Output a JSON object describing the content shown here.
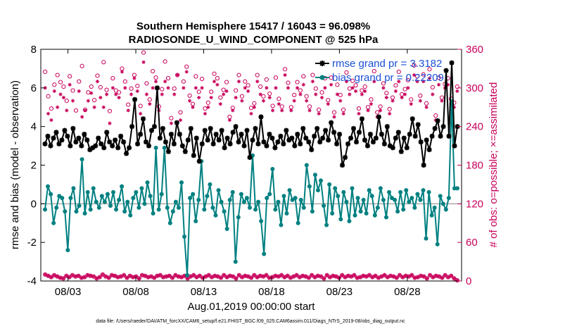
{
  "chart_data": {
    "type": "line",
    "title_line1": "Southern Hemisphere 15417 / 16043 = 96.098%",
    "title_line2": "RADIOSONDE_U_WIND_COMPONENT @ 525 hPa",
    "ylabel": "rmse and bias (model - observation)",
    "ylabel_right": "# of obs: o=possible; ×=assimilated",
    "xlabel": "Aug.01,2019 00:00:00 start",
    "footnote": "data file: /Users/raeder/DAI/ATM_forcXX/CAM6_setup/f.e21.FHIST_BGC.f09_025.CAM6assim.011/Diags_NTrS_2019-08/obs_diag_output.nc",
    "ylim": [
      -4,
      8
    ],
    "yticks": [
      "-4",
      "-2",
      "0",
      "2",
      "4",
      "6",
      "8"
    ],
    "ylim_right": [
      0,
      360
    ],
    "yticks_right": [
      "0",
      "60",
      "120",
      "180",
      "240",
      "300",
      "360"
    ],
    "xlim": [
      0,
      31
    ],
    "xticks": [
      {
        "pos": 2,
        "label": "08/03"
      },
      {
        "pos": 7,
        "label": "08/08"
      },
      {
        "pos": 12,
        "label": "08/13"
      },
      {
        "pos": 17,
        "label": "08/18"
      },
      {
        "pos": 22,
        "label": "08/23"
      },
      {
        "pos": 27,
        "label": "08/28"
      }
    ],
    "series": [
      {
        "name": "rmse grand pr = 3.3182",
        "color": "#000000",
        "values": [
          3.1,
          3.5,
          3.0,
          3.4,
          3.7,
          3.1,
          3.3,
          3.8,
          3.5,
          3.0,
          3.9,
          3.2,
          3.4,
          3.0,
          3.6,
          3.3,
          2.8,
          2.9,
          3.0,
          3.4,
          3.1,
          2.9,
          3.7,
          3.2,
          3.0,
          3.3,
          2.9,
          3.5,
          3.2,
          2.6,
          2.9,
          4.0,
          5.4,
          3.1,
          3.6,
          4.4,
          3.2,
          3.0,
          3.8,
          4.0,
          6.0,
          3.4,
          3.9,
          3.2,
          2.7,
          3.6,
          3.1,
          4.2,
          3.6,
          3.0,
          2.7,
          3.3,
          3.9,
          2.5,
          3.4,
          2.2,
          3.1,
          3.8,
          3.3,
          3.9,
          3.1,
          3.6,
          3.3,
          3.8,
          2.9,
          3.4,
          3.1,
          3.7,
          4.0,
          3.2,
          3.6,
          3.0,
          3.8,
          2.4,
          3.3,
          3.9,
          3.1,
          4.5,
          3.2,
          3.0,
          3.6,
          3.4,
          2.9,
          3.2,
          3.5,
          3.1,
          3.8,
          3.3,
          3.4,
          3.0,
          3.6,
          3.1,
          3.9,
          3.4,
          3.2,
          2.8,
          3.5,
          3.9,
          3.2,
          3.4,
          3.8,
          3.3,
          4.2,
          3.7,
          3.1,
          3.6,
          2.0,
          2.4,
          3.1,
          3.4,
          3.9,
          3.2,
          3.7,
          4.4,
          3.3,
          3.0,
          3.6,
          3.2,
          3.4,
          4.5,
          3.6,
          3.1,
          4.0,
          3.0,
          2.9,
          3.4,
          3.7,
          2.7,
          3.4,
          2.9,
          3.6,
          4.4,
          3.5,
          4.1,
          3.2,
          2.0,
          3.3,
          2.8,
          3.5,
          3.9,
          4.3,
          3.5,
          4.0,
          6.9,
          3.5,
          7.3,
          3.0,
          4.0
        ],
        "values_note": "rmse per 6h analysis time"
      },
      {
        "name": "bias grand pr = 0.22209",
        "color": "#008080",
        "values": [
          -0.3,
          0.9,
          0.5,
          -1.0,
          -0.2,
          0.4,
          0.3,
          -0.4,
          -2.4,
          0.3,
          0.8,
          -0.4,
          -0.1,
          2.3,
          -0.5,
          0.6,
          -0.3,
          0.8,
          0.1,
          -0.2,
          0.4,
          0.1,
          0.5,
          -0.1,
          0.6,
          -0.3,
          0.2,
          0.9,
          -0.4,
          0.1,
          -0.6,
          0.3,
          0.6,
          -0.2,
          0.8,
          0.0,
          1.1,
          0.4,
          -0.5,
          2.9,
          -0.3,
          0.5,
          2.9,
          -0.2,
          -1.0,
          -0.4,
          0.1,
          -0.2,
          1.1,
          -1.7,
          -3.7,
          0.3,
          0.5,
          -0.9,
          0.2,
          2.2,
          -0.3,
          0.4,
          1.0,
          -0.2,
          -0.6,
          0.7,
          0.1,
          -0.4,
          -1.3,
          0.2,
          0.6,
          -3.0,
          -0.7,
          0.5,
          0.1,
          0.3,
          -0.2,
          2.5,
          -0.3,
          0.1,
          -0.9,
          -2.6,
          0.3,
          0.5,
          1.8,
          -0.3,
          0.1,
          -1.1,
          0.4,
          -0.5,
          0.7,
          0.2,
          0.3,
          -1.0,
          0.2,
          -0.2,
          2.0,
          0.9,
          -0.4,
          1.5,
          0.7,
          1.2,
          -0.1,
          -1.1,
          1.0,
          -0.5,
          0.8,
          0.4,
          -0.8,
          0.6,
          0.1,
          -0.9,
          0.8,
          -0.6,
          0.3,
          -0.4,
          0.2,
          -0.5,
          0.7,
          0.4,
          -0.6,
          -0.2,
          0.8,
          0.2,
          -0.7,
          0.6,
          0.3,
          0.2,
          -0.4,
          0.6,
          -0.3,
          0.7,
          0.1,
          0.3,
          -0.2,
          0.5,
          0.2,
          0.7,
          -1.8,
          0.6,
          -0.6,
          -0.2,
          -2.1,
          0.4,
          0.0,
          -0.3,
          0.3,
          5.3,
          0.8,
          0.8
        ],
        "values_note": "bias per 6h analysis time"
      }
    ],
    "obs_possible": [
      325,
      287,
      268,
      305,
      320,
      309,
      302,
      280,
      318,
      296,
      265,
      310,
      334,
      266,
      293,
      302,
      281,
      319,
      301,
      340,
      297,
      264,
      315,
      296,
      293,
      330,
      310,
      274,
      299,
      320,
      303,
      272,
      355,
      307,
      282,
      326,
      316,
      271,
      298,
      341,
      315,
      253,
      299,
      320,
      262,
      310,
      333,
      288,
      275,
      318,
      294,
      314,
      268,
      277,
      294,
      322,
      315,
      285,
      297,
      309,
      255,
      269,
      296,
      320,
      287,
      310,
      304,
      269,
      276,
      320,
      302,
      287,
      313,
      291,
      272,
      316,
      283,
      271,
      329,
      308,
      270,
      289,
      309,
      296,
      318,
      287,
      271,
      320,
      299,
      266,
      293,
      315,
      281,
      316,
      262,
      305,
      289,
      266,
      324,
      299,
      311,
      304,
      268,
      296,
      302,
      270,
      282,
      326,
      262,
      271,
      307,
      292,
      267,
      285,
      304,
      325,
      290,
      298,
      312,
      282,
      335,
      318,
      288,
      321,
      276,
      329,
      301,
      257,
      316,
      285,
      306,
      315,
      283,
      277,
      302
    ],
    "obs_assimilated": [
      300,
      260,
      250,
      295,
      270,
      290,
      285,
      265,
      305,
      280,
      215,
      295,
      255,
      265,
      280,
      292,
      270,
      310,
      285,
      270,
      290,
      245,
      300,
      290,
      285,
      325,
      300,
      265,
      290,
      315,
      295,
      260,
      340,
      290,
      275,
      300,
      310,
      265,
      290,
      310,
      300,
      245,
      290,
      320,
      250,
      300,
      325,
      280,
      270,
      300,
      285,
      300,
      260,
      270,
      285,
      310,
      305,
      275,
      290,
      295,
      250,
      265,
      285,
      310,
      280,
      300,
      295,
      260,
      270,
      310,
      290,
      280,
      300,
      285,
      265,
      300,
      275,
      265,
      320,
      300,
      265,
      280,
      300,
      290,
      305,
      280,
      265,
      310,
      290,
      260,
      285,
      300,
      275,
      305,
      255,
      290,
      280,
      260,
      310,
      290,
      300,
      295,
      260,
      290,
      295,
      265,
      275,
      310,
      255,
      265,
      300,
      285,
      260,
      280,
      295,
      310,
      285,
      290,
      300,
      275,
      320,
      310,
      280,
      310,
      270,
      315,
      290,
      250,
      305,
      280,
      300,
      305,
      275,
      270,
      295
    ],
    "obs_possible_low": [
      10,
      8,
      6,
      9,
      7,
      5,
      4,
      8,
      6,
      9,
      7,
      8,
      5,
      6,
      9,
      8,
      7,
      4,
      6,
      10,
      7,
      5,
      9,
      8,
      6,
      7,
      9,
      5,
      8,
      6,
      7,
      4,
      9,
      8,
      6,
      7,
      5,
      8,
      9,
      6,
      7,
      8,
      5,
      9,
      7,
      6,
      8,
      4,
      7,
      9,
      6,
      8,
      5,
      7,
      9,
      6,
      8,
      7,
      5,
      9,
      6,
      8,
      7,
      4,
      9,
      6,
      8,
      7,
      5,
      9,
      6,
      8,
      7,
      9,
      5,
      6,
      8,
      7,
      9,
      6,
      8,
      5,
      7,
      9,
      6,
      8,
      7,
      5,
      9,
      6,
      8,
      7,
      4,
      9,
      6,
      8,
      7,
      5,
      9,
      6,
      8,
      7,
      9,
      5,
      6,
      8,
      7,
      9,
      6,
      8,
      5,
      7,
      9,
      6,
      8,
      7,
      5,
      9,
      6,
      8,
      7,
      9,
      5,
      6,
      8,
      7,
      4,
      9,
      6,
      8,
      7,
      5,
      9,
      6,
      8,
      4,
      1
    ],
    "obs_assimilated_low": [
      10,
      8,
      6,
      9,
      7,
      5,
      4,
      8,
      6,
      9,
      7,
      8,
      5,
      6,
      9,
      8,
      7,
      4,
      6,
      10,
      7,
      5,
      9,
      8,
      6,
      7,
      9,
      5,
      8,
      6,
      7,
      4,
      9,
      8,
      6,
      7,
      5,
      8,
      9,
      6,
      7,
      8,
      5,
      9,
      7,
      6,
      8,
      4,
      7,
      9,
      6,
      8,
      5,
      7,
      9,
      6,
      8,
      7,
      5,
      9,
      6,
      8,
      7,
      4,
      9,
      6,
      8,
      7,
      5,
      9,
      6,
      8,
      7,
      9,
      5,
      6,
      8,
      7,
      9,
      6,
      8,
      5,
      7,
      9,
      6,
      8,
      7,
      5,
      9,
      6,
      8,
      7,
      4,
      9,
      6,
      8,
      7,
      5,
      9,
      6,
      8,
      7,
      9,
      5,
      6,
      8,
      7,
      9,
      6,
      8,
      5,
      7,
      9,
      6,
      8,
      7,
      5,
      9,
      6,
      8,
      7,
      9,
      5,
      6,
      8,
      7,
      4,
      9,
      6,
      8,
      7,
      5,
      9,
      6,
      8,
      4,
      1
    ],
    "colors": {
      "rmse": "#000000",
      "bias": "#008080",
      "obs": "#c8005a",
      "zero_line": "#aaaaaa",
      "legend_text": "#1a4fd6"
    }
  }
}
